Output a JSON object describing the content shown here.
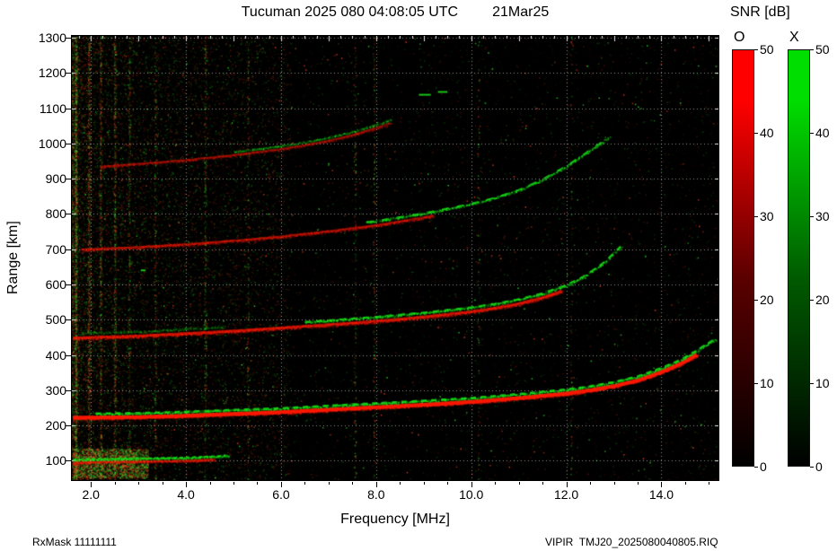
{
  "header": {
    "title": "Tucuman 2025 080 04:08:05 UTC",
    "date": "21Mar25"
  },
  "colorbar": {
    "title": "SNR [dB]",
    "o_label": "O",
    "x_label": "X",
    "min": 0,
    "max": 50,
    "ticks": [
      0,
      10,
      20,
      30,
      40,
      50
    ],
    "o_color": "#ff0000",
    "o_dark": "#5a0000",
    "x_color": "#00dd00",
    "x_dark": "#005a00"
  },
  "footer": {
    "left": "RxMask 11111111",
    "right": "VIPIR  TMJ20_2025080040805.RIQ"
  },
  "chart_data": {
    "type": "heatmap",
    "title": "Tucuman 2025 080 04:08:05 UTC 21Mar25",
    "xlabel": "Frequency [MHz]",
    "ylabel": "Range [km]",
    "xlim": [
      1.6,
      15.2
    ],
    "ylim": [
      45,
      1305
    ],
    "x_major_ticks": [
      2,
      4,
      6,
      8,
      10,
      12,
      14
    ],
    "x_tick_labels": [
      "2.0",
      "4.0",
      "6.0",
      "8.0",
      "10.0",
      "12.0",
      "14.0"
    ],
    "y_major_ticks": [
      100,
      200,
      300,
      400,
      500,
      600,
      700,
      800,
      900,
      1000,
      1100,
      1200,
      1300
    ],
    "grid": true,
    "background": "#000000",
    "snr_scale": {
      "min": 0,
      "max": 50,
      "units": "dB",
      "modes": [
        "O",
        "X"
      ]
    },
    "colors": {
      "o": "#ff1a00",
      "x": "#1ae81a",
      "noise_red": "#ff4422",
      "noise_green": "#33ee33",
      "grid": "#ffffff"
    },
    "noise": {
      "seed": 42,
      "uniform_count": 10000,
      "red_fraction": 0.55,
      "bright_fraction": 0.035,
      "left_count": 15000,
      "left_max_mhz": 6.2,
      "left_pow": 1.9,
      "stripes": [
        {
          "f": 1.68,
          "count": 1500,
          "red": 0.45
        },
        {
          "f": 1.95,
          "count": 900,
          "red": 0.7
        },
        {
          "f": 2.2,
          "count": 700,
          "red": 0.6
        },
        {
          "f": 2.5,
          "count": 800,
          "red": 0.55
        },
        {
          "f": 2.8,
          "count": 500,
          "red": 0.5
        },
        {
          "f": 3.35,
          "count": 350,
          "red": 0.5
        },
        {
          "f": 4.4,
          "count": 450,
          "red": 0.45
        },
        {
          "f": 5.3,
          "count": 250,
          "red": 0.5
        },
        {
          "f": 7.55,
          "count": 280,
          "red": 0.5
        },
        {
          "f": 7.95,
          "count": 300,
          "red": 0.5
        },
        {
          "f": 10.15,
          "count": 150,
          "red": 0.5
        },
        {
          "f": 12.1,
          "count": 140,
          "red": 0.5
        }
      ],
      "bottom_blob": {
        "f": [
          1.62,
          3.2
        ],
        "km": [
          52,
          135
        ],
        "count": 2600,
        "red": 0.5
      }
    },
    "traces": [
      {
        "name": "E-layer",
        "points": [
          [
            1.62,
            94
          ],
          [
            2.0,
            96
          ],
          [
            2.5,
            97
          ],
          [
            3.0,
            98
          ],
          [
            3.5,
            99
          ],
          [
            4.0,
            100
          ],
          [
            4.5,
            103
          ],
          [
            5.0,
            107
          ]
        ],
        "o": {
          "f": [
            1.62,
            4.6
          ],
          "width": 2,
          "alpha": 0.55,
          "speck": 3,
          "half_km": 7
        },
        "x": {
          "f": [
            1.62,
            4.9
          ],
          "width": 2,
          "alpha": 0.7,
          "offset_km": 9,
          "dash": [
            4,
            3
          ],
          "speck": 3,
          "half_km": 6
        }
      },
      {
        "name": "F 4-hop",
        "points": [
          [
            2.0,
            932
          ],
          [
            3.0,
            942
          ],
          [
            4.0,
            953
          ],
          [
            5.0,
            967
          ],
          [
            6.0,
            984
          ],
          [
            6.5,
            995
          ],
          [
            7.0,
            1008
          ],
          [
            7.5,
            1024
          ],
          [
            8.0,
            1044
          ],
          [
            8.3,
            1058
          ]
        ],
        "o": {
          "f": [
            2.2,
            8.3
          ],
          "width": 2,
          "alpha": 0.45,
          "speck": 2,
          "half_km": 8
        },
        "x": {
          "f": [
            5.0,
            8.3
          ],
          "width": 0,
          "alpha": 0.5,
          "offset_km": 10,
          "speck": 2,
          "half_km": 6
        }
      },
      {
        "name": "F 3-hop",
        "points": [
          [
            1.7,
            698
          ],
          [
            3.0,
            706
          ],
          [
            4.0,
            714
          ],
          [
            5.0,
            724
          ],
          [
            6.0,
            736
          ],
          [
            7.0,
            751
          ],
          [
            8.0,
            768
          ],
          [
            9.0,
            790
          ],
          [
            10.0,
            817
          ],
          [
            10.5,
            834
          ],
          [
            11.0,
            856
          ],
          [
            11.5,
            886
          ],
          [
            12.0,
            924
          ],
          [
            12.4,
            960
          ],
          [
            12.9,
            1006
          ]
        ],
        "o": {
          "f": [
            1.8,
            9.2
          ],
          "width": 2.2,
          "alpha": 0.5,
          "speck": 3,
          "half_km": 9
        },
        "x": {
          "f": [
            7.8,
            12.9
          ],
          "width": 2,
          "alpha": 0.75,
          "offset_km": 12,
          "dash": [
            8,
            9
          ],
          "speck": 2,
          "half_km": 6
        }
      },
      {
        "name": "F 2-hop",
        "points": [
          [
            1.62,
            448
          ],
          [
            3.0,
            454
          ],
          [
            4.0,
            461
          ],
          [
            5.0,
            468
          ],
          [
            6.0,
            477
          ],
          [
            7.0,
            486
          ],
          [
            8.0,
            496
          ],
          [
            9.0,
            508
          ],
          [
            10.0,
            523
          ],
          [
            10.5,
            533
          ],
          [
            11.0,
            546
          ],
          [
            11.5,
            563
          ],
          [
            12.0,
            586
          ],
          [
            12.4,
            613
          ],
          [
            12.8,
            651
          ],
          [
            13.15,
            697
          ]
        ],
        "o": {
          "f": [
            1.62,
            11.9
          ],
          "width": 2.8,
          "alpha": 0.62,
          "speck": 4,
          "half_km": 10
        },
        "x": {
          "f": [
            6.5,
            13.15
          ],
          "width": 2.2,
          "alpha": 0.78,
          "offset_km": 12,
          "dash": [
            7,
            6
          ],
          "speck": 2,
          "half_km": 7
        }
      },
      {
        "name": "F 2-hop upper fringe",
        "points": [
          [
            1.62,
            448
          ],
          [
            3.0,
            454
          ],
          [
            4.0,
            461
          ],
          [
            5.0,
            468
          ]
        ],
        "x": {
          "f": [
            1.8,
            4.8
          ],
          "width": 0,
          "alpha": 0.35,
          "offset_km": 14,
          "speck": 2,
          "half_km": 8
        }
      },
      {
        "name": "F 1-hop",
        "points": [
          [
            1.62,
            222
          ],
          [
            3.0,
            224
          ],
          [
            4.0,
            228
          ],
          [
            5.0,
            233
          ],
          [
            6.0,
            238
          ],
          [
            7.0,
            245
          ],
          [
            8.0,
            252
          ],
          [
            9.0,
            259
          ],
          [
            10.0,
            267
          ],
          [
            11.0,
            278
          ],
          [
            12.0,
            291
          ],
          [
            12.5,
            300
          ],
          [
            13.0,
            312
          ],
          [
            13.5,
            328
          ],
          [
            14.0,
            352
          ],
          [
            14.4,
            375
          ],
          [
            14.7,
            398
          ],
          [
            15.1,
            432
          ]
        ],
        "o": {
          "f": [
            1.62,
            14.75
          ],
          "width": 4,
          "alpha": 0.95,
          "speck": 5,
          "half_km": 9
        },
        "x": {
          "f": [
            2.1,
            15.15
          ],
          "width": 2.5,
          "alpha": 0.8,
          "offset_km": 11,
          "dash": [
            6,
            5
          ],
          "speck": 2,
          "half_km": 6
        }
      }
    ],
    "extra_marks": [
      {
        "f": 8.9,
        "km": 1138,
        "len": 0.25,
        "mode": "x"
      },
      {
        "f": 9.3,
        "km": 1146,
        "len": 0.2,
        "mode": "x"
      },
      {
        "f": 3.05,
        "km": 640,
        "len": 0.1,
        "mode": "x"
      }
    ]
  }
}
